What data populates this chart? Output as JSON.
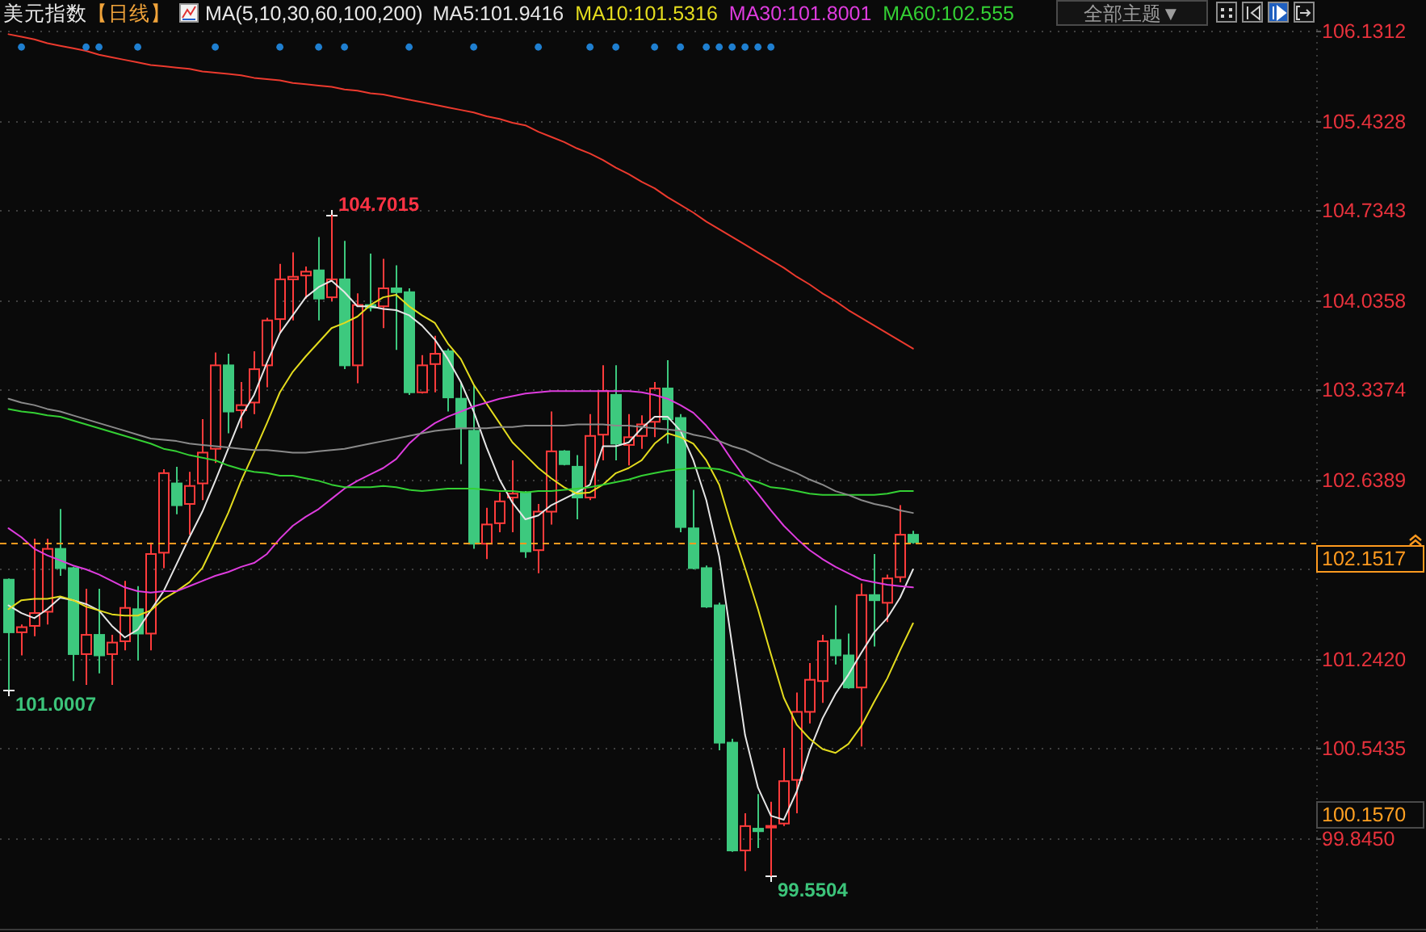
{
  "chart_data": {
    "type": "candlestick",
    "title": "美元指数",
    "subtitle": "【日线】",
    "legend_title": "MA(5,10,30,60,100,200)",
    "legend": "top",
    "grid": "y",
    "tick_labels": "y",
    "line_style": "solid",
    "categories": [
      null,
      null,
      null,
      null,
      null,
      null,
      null,
      null,
      null,
      null,
      null,
      null,
      null,
      null,
      null,
      null,
      null,
      null,
      null,
      null,
      null,
      null,
      null,
      null,
      null,
      null,
      null,
      null,
      null,
      null,
      null,
      null,
      null,
      null,
      null,
      null,
      null,
      null,
      null,
      null,
      null,
      null,
      null,
      null,
      null,
      null,
      null,
      null,
      null,
      null,
      null,
      null,
      null,
      null,
      null,
      null,
      null,
      null,
      null,
      null,
      null,
      null,
      null,
      null,
      null,
      null,
      null,
      null,
      null,
      null,
      null
    ],
    "ylim": [
      99.14,
      106.15
    ],
    "yticks": [
      106.1312,
      105.4328,
      104.7343,
      104.0358,
      103.3374,
      102.6389,
      {
        "value": 101.9405,
        "label": null
      },
      {
        "value": 101.242,
        "label": "101.2420"
      },
      100.5435,
      {
        "value": 99.845,
        "label": "99.8450"
      }
    ],
    "ohlc": [
      [
        101.86,
        101.87,
        101.0007,
        101.45
      ],
      [
        101.45,
        101.51,
        101.27,
        101.49
      ],
      [
        101.5,
        102.18,
        101.42,
        101.6
      ],
      [
        101.61,
        102.18,
        101.51,
        102.1
      ],
      [
        102.1,
        102.41,
        101.89,
        101.95
      ],
      [
        101.95,
        101.96,
        101.07,
        101.28
      ],
      [
        101.28,
        101.79,
        101.04,
        101.43
      ],
      [
        101.43,
        101.79,
        101.13,
        101.27
      ],
      [
        101.28,
        101.43,
        101.04,
        101.37
      ],
      [
        101.38,
        101.85,
        101.31,
        101.64
      ],
      [
        101.63,
        101.81,
        101.23,
        101.44
      ],
      [
        101.44,
        102.15,
        101.31,
        102.06
      ],
      [
        102.07,
        102.72,
        101.95,
        102.69
      ],
      [
        102.61,
        102.74,
        102.37,
        102.44
      ],
      [
        102.45,
        102.7,
        102.21,
        102.59
      ],
      [
        102.61,
        103.11,
        102.48,
        102.85
      ],
      [
        102.88,
        103.63,
        102.77,
        103.53
      ],
      [
        103.53,
        103.62,
        103.0,
        103.17
      ],
      [
        103.18,
        103.4,
        103.04,
        103.22
      ],
      [
        103.24,
        103.64,
        103.15,
        103.5
      ],
      [
        103.53,
        103.9,
        103.36,
        103.88
      ],
      [
        103.89,
        104.32,
        103.78,
        104.2
      ],
      [
        104.2,
        104.41,
        103.88,
        104.22
      ],
      [
        104.23,
        104.3,
        104.05,
        104.26
      ],
      [
        104.27,
        104.53,
        103.88,
        104.05
      ],
      [
        104.06,
        104.7015,
        104.03,
        104.2
      ],
      [
        104.2,
        104.5,
        103.5,
        103.53
      ],
      [
        103.53,
        104.09,
        103.39,
        104.0
      ],
      [
        104.0,
        104.4,
        103.95,
        103.98
      ],
      [
        103.99,
        104.36,
        103.82,
        104.13
      ],
      [
        104.13,
        104.31,
        103.65,
        104.1
      ],
      [
        104.1,
        104.13,
        103.3,
        103.32
      ],
      [
        103.32,
        103.61,
        103.31,
        103.53
      ],
      [
        103.54,
        103.76,
        103.32,
        103.62
      ],
      [
        103.64,
        103.66,
        103.17,
        103.28
      ],
      [
        103.27,
        103.4,
        102.76,
        103.04
      ],
      [
        103.02,
        103.38,
        102.1,
        102.14
      ],
      [
        102.14,
        102.42,
        102.02,
        102.29
      ],
      [
        102.3,
        102.54,
        102.23,
        102.47
      ],
      [
        102.5,
        102.79,
        102.23,
        102.53
      ],
      [
        102.54,
        102.55,
        102.03,
        102.08
      ],
      [
        102.09,
        102.45,
        101.91,
        102.39
      ],
      [
        102.39,
        103.17,
        102.29,
        102.86
      ],
      [
        102.86,
        102.87,
        102.75,
        102.76
      ],
      [
        102.74,
        102.83,
        102.33,
        102.5
      ],
      [
        102.5,
        103.15,
        102.48,
        102.98
      ],
      [
        102.99,
        103.53,
        102.79,
        103.33
      ],
      [
        103.3,
        103.53,
        102.79,
        102.92
      ],
      [
        102.91,
        103.15,
        102.75,
        102.97
      ],
      [
        102.98,
        103.14,
        102.88,
        103.07
      ],
      [
        103.09,
        103.4,
        102.97,
        103.35
      ],
      [
        103.35,
        103.57,
        102.92,
        103.11
      ],
      [
        103.12,
        103.15,
        102.23,
        102.27
      ],
      [
        102.26,
        102.56,
        101.94,
        101.95
      ],
      [
        101.95,
        101.97,
        101.64,
        101.65
      ],
      [
        101.66,
        101.68,
        100.53,
        100.59
      ],
      [
        100.59,
        100.62,
        99.74,
        99.75
      ],
      [
        99.75,
        100.04,
        99.59,
        99.94
      ],
      [
        99.92,
        100.19,
        99.77,
        99.9
      ],
      [
        99.93,
        100.13,
        99.5504,
        99.94
      ],
      [
        99.96,
        100.55,
        99.94,
        100.29
      ],
      [
        100.3,
        100.98,
        100.04,
        100.83
      ],
      [
        100.83,
        101.21,
        100.74,
        101.08
      ],
      [
        101.07,
        101.43,
        100.9,
        101.38
      ],
      [
        101.39,
        101.66,
        101.2,
        101.27
      ],
      [
        101.27,
        101.44,
        101.01,
        101.02
      ],
      [
        101.02,
        101.83,
        100.56,
        101.74
      ],
      [
        101.74,
        102.06,
        101.34,
        101.7
      ],
      [
        101.68,
        101.9,
        101.53,
        101.87
      ],
      [
        101.88,
        102.44,
        101.84,
        102.21
      ],
      [
        102.21,
        102.24,
        102.14,
        102.1517
      ]
    ],
    "colors": [
      "#3dc97e",
      "#ff3b3b",
      "#ff3b3b",
      "#ff3b3b",
      "#3dc97e",
      "#3dc97e",
      "#ff3b3b",
      "#3dc97e",
      "#ff3b3b",
      "#ff3b3b",
      "#3dc97e",
      "#ff3b3b",
      "#ff3b3b",
      "#3dc97e",
      "#ff3b3b",
      "#ff3b3b",
      "#ff3b3b",
      "#3dc97e",
      "#ff3b3b",
      "#ff3b3b",
      "#ff3b3b",
      "#ff3b3b",
      "#ff3b3b",
      "#ff3b3b",
      "#3dc97e",
      "#ff3b3b",
      "#3dc97e",
      "#ff3b3b",
      "#3dc97e",
      "#ff3b3b",
      "#3dc97e",
      "#3dc97e",
      "#ff3b3b",
      "#ff3b3b",
      "#3dc97e",
      "#3dc97e",
      "#3dc97e",
      "#ff3b3b",
      "#ff3b3b",
      "#ff3b3b",
      "#3dc97e",
      "#ff3b3b",
      "#ff3b3b",
      "#3dc97e",
      "#3dc97e",
      "#ff3b3b",
      "#ff3b3b",
      "#3dc97e",
      "#ff3b3b",
      "#ff3b3b",
      "#ff3b3b",
      "#3dc97e",
      "#3dc97e",
      "#3dc97e",
      "#3dc97e",
      "#3dc97e",
      "#3dc97e",
      "#ff3b3b",
      "#3dc97e",
      "#ff3b3b",
      "#ff3b3b",
      "#ff3b3b",
      "#ff3b3b",
      "#ff3b3b",
      "#3dc97e",
      "#3dc97e",
      "#ff3b3b",
      "#3dc97e",
      "#ff3b3b",
      "#ff3b3b",
      "#3dc97e"
    ],
    "series": [
      {
        "name": "MA5:101.9416",
        "type": "line",
        "color": "#e6e6e6",
        "values": [
          101.66,
          101.6,
          101.56,
          101.63,
          101.72,
          101.7,
          101.67,
          101.62,
          101.5,
          101.41,
          101.47,
          101.62,
          101.77,
          101.98,
          102.19,
          102.39,
          102.63,
          102.88,
          103.13,
          103.3,
          103.55,
          103.78,
          103.92,
          104.06,
          104.14,
          104.19,
          104.1,
          103.99,
          103.99,
          103.97,
          103.96,
          103.92,
          103.84,
          103.73,
          103.58,
          103.4,
          103.17,
          102.89,
          102.64,
          102.46,
          102.33,
          102.36,
          102.44,
          102.49,
          102.54,
          102.6,
          102.9,
          102.9,
          102.93,
          103.04,
          103.13,
          103.13,
          103.02,
          102.79,
          102.48,
          102.04,
          101.35,
          100.65,
          100.24,
          100.02,
          99.99,
          100.21,
          100.53,
          100.78,
          100.97,
          101.12,
          101.29,
          101.45,
          101.56,
          101.72,
          101.94
        ]
      },
      {
        "name": "MA10:101.5316",
        "type": "line",
        "color": "#e4dc1e",
        "values": [
          101.63,
          101.7,
          101.71,
          101.71,
          101.73,
          101.7,
          101.65,
          101.62,
          101.59,
          101.58,
          101.58,
          101.62,
          101.71,
          101.77,
          101.84,
          101.95,
          102.16,
          102.38,
          102.63,
          102.85,
          103.08,
          103.32,
          103.48,
          103.6,
          103.71,
          103.82,
          103.86,
          103.91,
          104.0,
          104.06,
          104.08,
          103.99,
          103.92,
          103.86,
          103.7,
          103.58,
          103.38,
          103.23,
          103.08,
          102.93,
          102.83,
          102.73,
          102.65,
          102.58,
          102.53,
          102.54,
          102.6,
          102.69,
          102.73,
          102.79,
          102.92,
          103.0,
          102.97,
          102.92,
          102.79,
          102.6,
          102.26,
          101.95,
          101.63,
          101.28,
          100.94,
          100.73,
          100.62,
          100.54,
          100.51,
          100.58,
          100.72,
          100.91,
          101.09,
          101.31,
          101.52
        ]
      },
      {
        "name": "MA30:101.8001",
        "type": "line",
        "color": "#de3cde",
        "values": [
          102.26,
          102.19,
          102.1,
          102.05,
          102.01,
          101.97,
          101.94,
          101.9,
          101.85,
          101.8,
          101.77,
          101.76,
          101.77,
          101.77,
          101.81,
          101.85,
          101.89,
          101.92,
          101.96,
          101.99,
          102.06,
          102.18,
          102.28,
          102.35,
          102.41,
          102.49,
          102.57,
          102.63,
          102.68,
          102.73,
          102.8,
          102.92,
          103.01,
          103.08,
          103.13,
          103.17,
          103.21,
          103.24,
          103.27,
          103.29,
          103.31,
          103.32,
          103.33,
          103.33,
          103.33,
          103.33,
          103.33,
          103.33,
          103.33,
          103.32,
          103.3,
          103.27,
          103.22,
          103.16,
          103.06,
          102.94,
          102.79,
          102.65,
          102.53,
          102.4,
          102.28,
          102.18,
          102.09,
          102.02,
          101.96,
          101.91,
          101.86,
          101.84,
          101.82,
          101.81,
          101.8
        ]
      },
      {
        "name": "MA60:102.555",
        "type": "line",
        "color": "#34d034",
        "values": [
          103.19,
          103.17,
          103.16,
          103.14,
          103.13,
          103.1,
          103.07,
          103.04,
          103.01,
          102.98,
          102.95,
          102.92,
          102.88,
          102.86,
          102.83,
          102.81,
          102.79,
          102.75,
          102.72,
          102.7,
          102.69,
          102.67,
          102.67,
          102.65,
          102.63,
          102.6,
          102.58,
          102.58,
          102.58,
          102.59,
          102.58,
          102.56,
          102.55,
          102.56,
          102.57,
          102.57,
          102.57,
          102.56,
          102.55,
          102.55,
          102.54,
          102.55,
          102.55,
          102.56,
          102.57,
          102.58,
          102.6,
          102.62,
          102.64,
          102.67,
          102.69,
          102.71,
          102.72,
          102.73,
          102.73,
          102.72,
          102.69,
          102.65,
          102.62,
          102.58,
          102.57,
          102.55,
          102.53,
          102.52,
          102.52,
          102.52,
          102.52,
          102.52,
          102.53,
          102.55,
          102.55
        ]
      },
      {
        "type": "line",
        "color": "#8a8a8a",
        "values": [
          103.27,
          103.24,
          103.22,
          103.19,
          103.17,
          103.14,
          103.11,
          103.08,
          103.05,
          103.02,
          102.99,
          102.96,
          102.95,
          102.94,
          102.92,
          102.91,
          102.9,
          102.89,
          102.88,
          102.87,
          102.87,
          102.86,
          102.85,
          102.85,
          102.86,
          102.87,
          102.88,
          102.9,
          102.92,
          102.94,
          102.96,
          102.98,
          103.0,
          103.02,
          103.03,
          103.04,
          103.04,
          103.04,
          103.05,
          103.05,
          103.06,
          103.06,
          103.06,
          103.06,
          103.07,
          103.07,
          103.07,
          103.06,
          103.06,
          103.05,
          103.04,
          103.03,
          103.02,
          102.99,
          102.97,
          102.94,
          102.9,
          102.87,
          102.82,
          102.77,
          102.73,
          102.69,
          102.64,
          102.6,
          102.55,
          102.52,
          102.48,
          102.45,
          102.43,
          102.4,
          102.38
        ]
      },
      {
        "type": "line",
        "color": "#ec3a2e",
        "values": [
          106.11,
          106.09,
          106.07,
          106.04,
          106.02,
          106.0,
          105.98,
          105.95,
          105.93,
          105.91,
          105.89,
          105.87,
          105.86,
          105.85,
          105.84,
          105.82,
          105.81,
          105.8,
          105.79,
          105.77,
          105.76,
          105.75,
          105.73,
          105.72,
          105.71,
          105.7,
          105.68,
          105.67,
          105.65,
          105.64,
          105.62,
          105.6,
          105.58,
          105.56,
          105.54,
          105.52,
          105.5,
          105.47,
          105.45,
          105.42,
          105.4,
          105.35,
          105.31,
          105.27,
          105.22,
          105.18,
          105.13,
          105.07,
          105.02,
          104.96,
          104.91,
          104.84,
          104.78,
          104.72,
          104.65,
          104.59,
          104.53,
          104.47,
          104.41,
          104.35,
          104.29,
          104.22,
          104.16,
          104.09,
          104.03,
          103.96,
          103.9,
          103.84,
          103.78,
          103.72,
          103.66
        ]
      },
      {
        "type": "scatter",
        "marker": "circle",
        "color": "#1f7fd0",
        "values": [
          null,
          106.01,
          null,
          null,
          null,
          null,
          106.01,
          106.01,
          null,
          null,
          106.01,
          null,
          null,
          null,
          null,
          null,
          106.01,
          null,
          null,
          null,
          null,
          106.01,
          null,
          null,
          106.01,
          null,
          106.01,
          null,
          null,
          null,
          null,
          106.01,
          null,
          null,
          null,
          null,
          106.01,
          null,
          null,
          null,
          null,
          106.01,
          null,
          null,
          null,
          106.01,
          null,
          106.01,
          null,
          null,
          106.01,
          null,
          106.01,
          null,
          106.01,
          106.01,
          106.01,
          106.01,
          106.01,
          106.01,
          null,
          null,
          null,
          null,
          null,
          null,
          null,
          null,
          null,
          null,
          null
        ]
      }
    ],
    "ref_lines": [
      {
        "axis": "y",
        "value": 102.1517,
        "label": "102.1517",
        "color": "#ff9a1f",
        "line_style": "dashed"
      }
    ],
    "annotations": [
      "全部主题▼",
      "104.7015",
      "101.0007",
      "99.5504",
      "100.1570"
    ]
  }
}
